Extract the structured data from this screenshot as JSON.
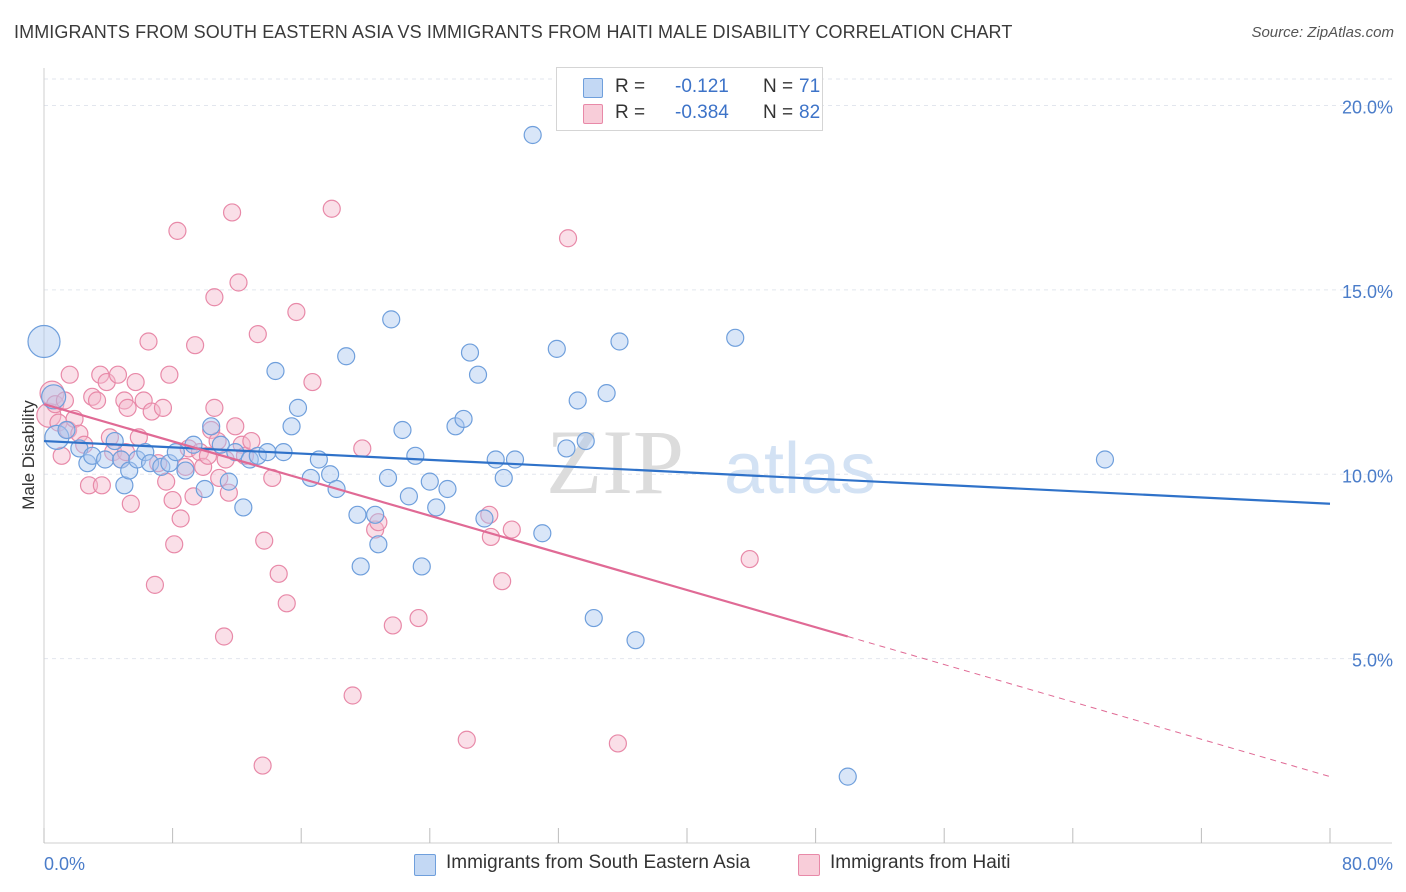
{
  "title": "IMMIGRANTS FROM SOUTH EASTERN ASIA VS IMMIGRANTS FROM HAITI MALE DISABILITY CORRELATION CHART",
  "source": "Source: ZipAtlas.com",
  "watermark": {
    "zip": "ZIP",
    "atlas": "atlas"
  },
  "colors": {
    "blue_fill": "#aac8f0",
    "blue_stroke": "#6f9fdc",
    "blue_line": "#2f72c9",
    "pink_fill": "#f5b8cb",
    "pink_stroke": "#e889a8",
    "pink_line": "#e06a95",
    "tick_text": "#4a7cc9",
    "grid": "#e2e6ee"
  },
  "legend": {
    "rows": [
      {
        "r_label": "R =",
        "r_value": "-0.121",
        "n_label": "N =",
        "n_value": "71"
      },
      {
        "r_label": "R =",
        "r_value": "-0.384",
        "n_label": "N =",
        "n_value": "82"
      }
    ]
  },
  "chart_data": {
    "type": "scatter",
    "ylabel": "Male Disability",
    "xlim": [
      0,
      80
    ],
    "ylim": [
      0,
      20.8
    ],
    "x_tick_labels": [
      "0.0%",
      "80.0%"
    ],
    "y_ticks": [
      5,
      10,
      15,
      20
    ],
    "y_tick_labels": [
      "5.0%",
      "10.0%",
      "15.0%",
      "20.0%"
    ],
    "grid": true,
    "legend_position": "top-center",
    "series": [
      {
        "name": "Immigrants from South Eastern Asia",
        "color": "blue",
        "trend": {
          "x": [
            0,
            80
          ],
          "y": [
            10.9,
            9.2
          ]
        },
        "points": [
          [
            0.0,
            13.6,
            3
          ],
          [
            0.6,
            12.1,
            2
          ],
          [
            0.8,
            11.0,
            2
          ],
          [
            1.4,
            11.2,
            1
          ],
          [
            2.2,
            10.7,
            1
          ],
          [
            2.7,
            10.3,
            1
          ],
          [
            3.0,
            10.5,
            1
          ],
          [
            3.8,
            10.4,
            1
          ],
          [
            4.4,
            10.9,
            1
          ],
          [
            4.8,
            10.4,
            1
          ],
          [
            5.0,
            9.7,
            1
          ],
          [
            5.3,
            10.1,
            1
          ],
          [
            5.8,
            10.4,
            1
          ],
          [
            6.3,
            10.6,
            1
          ],
          [
            6.6,
            10.3,
            1
          ],
          [
            7.3,
            10.2,
            1
          ],
          [
            7.8,
            10.3,
            1
          ],
          [
            8.2,
            10.6,
            1
          ],
          [
            8.8,
            10.1,
            1
          ],
          [
            9.3,
            10.8,
            1
          ],
          [
            10.0,
            9.6,
            1
          ],
          [
            10.4,
            11.3,
            1
          ],
          [
            11.0,
            10.8,
            1
          ],
          [
            11.5,
            9.8,
            1
          ],
          [
            11.9,
            10.6,
            1
          ],
          [
            12.4,
            9.1,
            1
          ],
          [
            12.8,
            10.4,
            1
          ],
          [
            13.3,
            10.5,
            1
          ],
          [
            13.9,
            10.6,
            1
          ],
          [
            14.4,
            12.8,
            1
          ],
          [
            14.9,
            10.6,
            1
          ],
          [
            15.4,
            11.3,
            1
          ],
          [
            15.8,
            11.8,
            1
          ],
          [
            16.6,
            9.9,
            1
          ],
          [
            17.1,
            10.4,
            1
          ],
          [
            17.8,
            10.0,
            1
          ],
          [
            18.2,
            9.6,
            1
          ],
          [
            18.8,
            13.2,
            1
          ],
          [
            19.5,
            8.9,
            1
          ],
          [
            19.7,
            7.5,
            1
          ],
          [
            20.6,
            8.9,
            1
          ],
          [
            20.8,
            8.1,
            1
          ],
          [
            21.4,
            9.9,
            1
          ],
          [
            21.6,
            14.2,
            1
          ],
          [
            22.3,
            11.2,
            1
          ],
          [
            22.7,
            9.4,
            1
          ],
          [
            23.1,
            10.5,
            1
          ],
          [
            23.5,
            7.5,
            1
          ],
          [
            24.0,
            9.8,
            1
          ],
          [
            24.4,
            9.1,
            1
          ],
          [
            25.1,
            9.6,
            1
          ],
          [
            25.6,
            11.3,
            1
          ],
          [
            26.1,
            11.5,
            1
          ],
          [
            26.5,
            13.3,
            1
          ],
          [
            27.0,
            12.7,
            1
          ],
          [
            27.4,
            8.8,
            1
          ],
          [
            28.1,
            10.4,
            1
          ],
          [
            28.6,
            9.9,
            1
          ],
          [
            29.3,
            10.4,
            1
          ],
          [
            30.4,
            19.2,
            1
          ],
          [
            31.0,
            8.4,
            1
          ],
          [
            31.9,
            13.4,
            1
          ],
          [
            32.5,
            10.7,
            1
          ],
          [
            33.2,
            12.0,
            1
          ],
          [
            33.7,
            10.9,
            1
          ],
          [
            34.2,
            6.1,
            1
          ],
          [
            35.0,
            12.2,
            1
          ],
          [
            35.8,
            13.6,
            1
          ],
          [
            36.8,
            5.5,
            1
          ],
          [
            43.0,
            13.7,
            1
          ],
          [
            50.0,
            1.8,
            1
          ],
          [
            66.0,
            10.4,
            1
          ]
        ]
      },
      {
        "name": "Immigrants from Haiti",
        "color": "pink",
        "trend": {
          "x": [
            0,
            50
          ],
          "y": [
            11.9,
            5.6
          ]
        },
        "trend_dashed": {
          "x": [
            50,
            80
          ],
          "y": [
            5.6,
            1.8
          ]
        },
        "points": [
          [
            0.3,
            11.6,
            2
          ],
          [
            0.5,
            12.2,
            2
          ],
          [
            0.7,
            11.9,
            1
          ],
          [
            0.9,
            11.4,
            1
          ],
          [
            1.1,
            10.5,
            1
          ],
          [
            1.3,
            12.0,
            1
          ],
          [
            1.5,
            11.2,
            1
          ],
          [
            1.6,
            12.7,
            1
          ],
          [
            1.9,
            11.5,
            1
          ],
          [
            2.2,
            11.1,
            1
          ],
          [
            2.5,
            10.8,
            1
          ],
          [
            2.8,
            9.7,
            1
          ],
          [
            3.0,
            12.1,
            1
          ],
          [
            3.3,
            12.0,
            1
          ],
          [
            3.5,
            12.7,
            1
          ],
          [
            3.6,
            9.7,
            1
          ],
          [
            3.9,
            12.5,
            1
          ],
          [
            4.1,
            11.0,
            1
          ],
          [
            4.3,
            10.6,
            1
          ],
          [
            4.6,
            12.7,
            1
          ],
          [
            4.8,
            10.4,
            1
          ],
          [
            5.0,
            12.0,
            1
          ],
          [
            5.1,
            10.6,
            1
          ],
          [
            5.2,
            11.8,
            1
          ],
          [
            5.4,
            9.2,
            1
          ],
          [
            5.7,
            12.5,
            1
          ],
          [
            5.9,
            11.0,
            1
          ],
          [
            6.2,
            12.0,
            1
          ],
          [
            6.5,
            13.6,
            1
          ],
          [
            6.7,
            11.7,
            1
          ],
          [
            6.9,
            7.0,
            1
          ],
          [
            7.1,
            10.3,
            1
          ],
          [
            7.4,
            11.8,
            1
          ],
          [
            7.6,
            9.8,
            1
          ],
          [
            7.8,
            12.7,
            1
          ],
          [
            8.0,
            9.3,
            1
          ],
          [
            8.1,
            8.1,
            1
          ],
          [
            8.3,
            16.6,
            1
          ],
          [
            8.5,
            8.8,
            1
          ],
          [
            8.8,
            10.2,
            1
          ],
          [
            9.0,
            10.7,
            1
          ],
          [
            9.3,
            9.4,
            1
          ],
          [
            9.4,
            13.5,
            1
          ],
          [
            9.7,
            10.6,
            1
          ],
          [
            9.9,
            10.2,
            1
          ],
          [
            10.2,
            10.5,
            1
          ],
          [
            10.4,
            11.2,
            1
          ],
          [
            10.6,
            14.8,
            1
          ],
          [
            10.6,
            11.8,
            1
          ],
          [
            10.8,
            10.9,
            1
          ],
          [
            10.9,
            9.9,
            1
          ],
          [
            11.2,
            5.6,
            1
          ],
          [
            11.3,
            10.4,
            1
          ],
          [
            11.5,
            9.5,
            1
          ],
          [
            11.7,
            17.1,
            1
          ],
          [
            11.9,
            11.3,
            1
          ],
          [
            12.1,
            15.2,
            1
          ],
          [
            12.3,
            10.8,
            1
          ],
          [
            12.5,
            10.5,
            1
          ],
          [
            12.9,
            10.9,
            1
          ],
          [
            13.3,
            13.8,
            1
          ],
          [
            13.6,
            2.1,
            1
          ],
          [
            13.7,
            8.2,
            1
          ],
          [
            14.2,
            9.9,
            1
          ],
          [
            14.6,
            7.3,
            1
          ],
          [
            15.1,
            6.5,
            1
          ],
          [
            15.7,
            14.4,
            1
          ],
          [
            16.7,
            12.5,
            1
          ],
          [
            17.9,
            17.2,
            1
          ],
          [
            19.2,
            4.0,
            1
          ],
          [
            19.8,
            10.7,
            1
          ],
          [
            20.6,
            8.5,
            1
          ],
          [
            20.8,
            8.7,
            1
          ],
          [
            21.7,
            5.9,
            1
          ],
          [
            23.3,
            6.1,
            1
          ],
          [
            26.3,
            2.8,
            1
          ],
          [
            27.7,
            8.9,
            1
          ],
          [
            27.8,
            8.3,
            1
          ],
          [
            28.5,
            7.1,
            1
          ],
          [
            29.1,
            8.5,
            1
          ],
          [
            32.6,
            16.4,
            1
          ],
          [
            35.7,
            2.7,
            1
          ],
          [
            43.9,
            7.7,
            1
          ]
        ]
      }
    ]
  }
}
